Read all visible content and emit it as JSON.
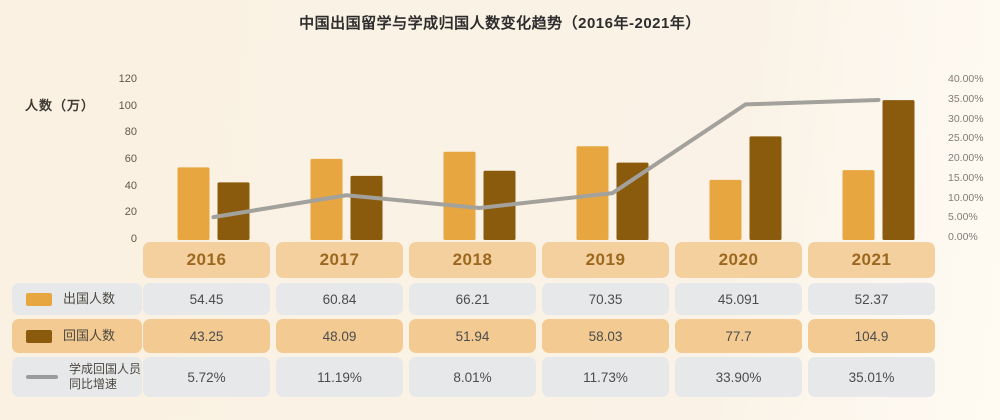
{
  "title": "中国出国留学与学成归国人数变化趋势（2016年-2021年）",
  "axes": {
    "left_label": "人数（万）",
    "left_ticks": [
      "120",
      "100",
      "80",
      "60",
      "40",
      "20",
      "0"
    ],
    "right_ticks": [
      "40.00%",
      "35.00%",
      "30.00%",
      "25.00%",
      "20.00%",
      "15.00%",
      "10.00%",
      "5.00%",
      "0.00%"
    ]
  },
  "colors": {
    "background": "#faf2e5",
    "bar_abroad": "#e8a640",
    "bar_return": "#8a5a0d",
    "line": "#a3a19c",
    "year_header_bg": "#f3d09e",
    "tan_cell_bg": "#f2ca92",
    "gray_cell_bg": "#e6e8ea"
  },
  "chart_data": {
    "type": "bar",
    "categories": [
      "2016",
      "2017",
      "2018",
      "2019",
      "2020",
      "2021"
    ],
    "series": [
      {
        "name": "出国人数",
        "type": "bar",
        "axis": "left",
        "color": "#e8a640",
        "values": [
          54.45,
          60.84,
          66.21,
          70.35,
          45.091,
          52.37
        ]
      },
      {
        "name": "回国人数",
        "type": "bar",
        "axis": "left",
        "color": "#8a5a0d",
        "values": [
          43.25,
          48.09,
          51.94,
          58.03,
          77.7,
          104.9
        ]
      },
      {
        "name": "学成回国人员同比增速",
        "type": "line",
        "axis": "right",
        "unit": "%",
        "color": "#a3a19c",
        "values": [
          5.72,
          11.19,
          8.01,
          11.73,
          33.9,
          35.01
        ]
      }
    ],
    "title": "中国出国留学与学成归国人数变化趋势（2016年-2021年）",
    "ylabel_left": "人数（万）",
    "ylim_left": [
      0,
      120
    ],
    "ylim_right": [
      0,
      40
    ],
    "grid": false,
    "legend_position": "table-left"
  },
  "table": {
    "rows": [
      {
        "label": "出国人数",
        "swatch": "bar-abroad-swatch",
        "values": [
          "54.45",
          "60.84",
          "66.21",
          "70.35",
          "45.091",
          "52.37"
        ]
      },
      {
        "label": "回国人数",
        "swatch": "bar-return-swatch",
        "values": [
          "43.25",
          "48.09",
          "51.94",
          "58.03",
          "77.7",
          "104.9"
        ]
      },
      {
        "label": "学成回国人员同比增速",
        "swatch": "line-swatch",
        "values": [
          "5.72%",
          "11.19%",
          "8.01%",
          "11.73%",
          "33.90%",
          "35.01%"
        ]
      }
    ]
  }
}
